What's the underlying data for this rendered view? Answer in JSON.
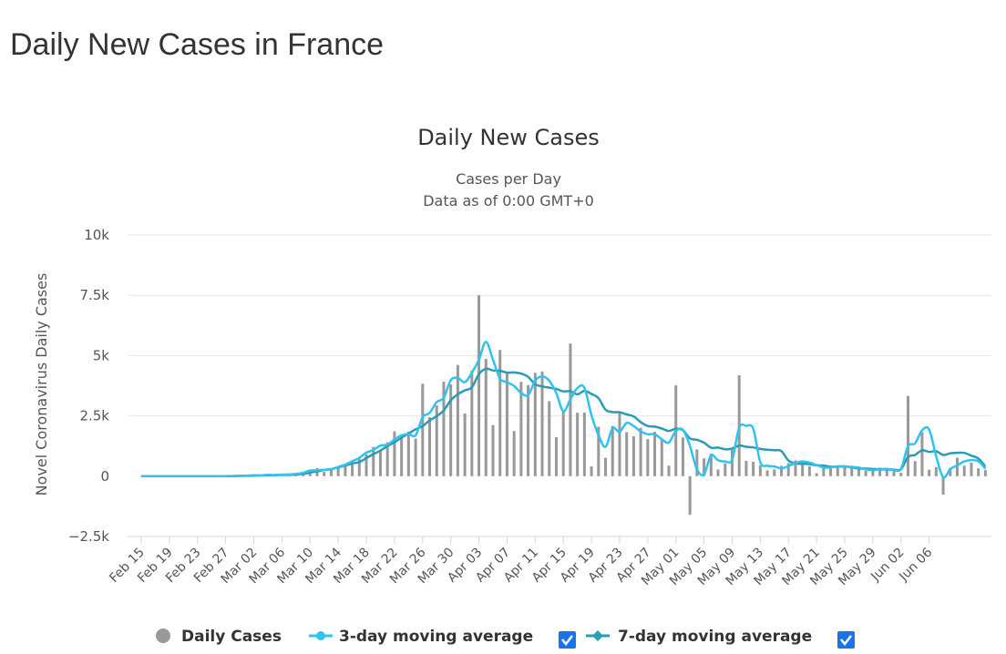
{
  "page": {
    "title": "Daily New Cases in France"
  },
  "chart_data": {
    "type": "bar",
    "title": "Daily New Cases",
    "subtitle_lines": [
      "Cases per Day",
      "Data as of 0:00 GMT+0"
    ],
    "ylabel": "Novel Coronavirus Daily Cases",
    "xlabel": "",
    "ylim": [
      -2500,
      10000
    ],
    "yticks": [
      -2500,
      0,
      2500,
      5000,
      7500,
      10000
    ],
    "ytick_labels": [
      "−2.5k",
      "0",
      "2.5k",
      "5k",
      "7.5k",
      "10k"
    ],
    "grid": true,
    "legend_position": "bottom",
    "x_tick_labels": [
      "Feb 15",
      "Feb 19",
      "Feb 23",
      "Feb 27",
      "Mar 02",
      "Mar 06",
      "Mar 10",
      "Mar 14",
      "Mar 18",
      "Mar 22",
      "Mar 26",
      "Mar 30",
      "Apr 03",
      "Apr 07",
      "Apr 11",
      "Apr 15",
      "Apr 19",
      "Apr 23",
      "Apr 27",
      "May 01",
      "May 05",
      "May 09",
      "May 13",
      "May 17",
      "May 21",
      "May 25",
      "May 29",
      "Jun 02",
      "Jun 06"
    ],
    "start_label": "Feb 15",
    "series": [
      {
        "name": "Daily Cases",
        "kind": "bar",
        "color": "#999999",
        "values": [
          0,
          0,
          0,
          0,
          0,
          0,
          0,
          0,
          0,
          0,
          0,
          0,
          0,
          0,
          2,
          4,
          20,
          19,
          43,
          30,
          61,
          21,
          73,
          138,
          190,
          336,
          177,
          286,
          372,
          495,
          591,
          780,
          905,
          1210,
          1097,
          1404,
          1861,
          1617,
          1847,
          1559,
          3838,
          2446,
          2931,
          3922,
          3809,
          4611,
          2599,
          4376,
          7500,
          4861,
          2116,
          5233,
          4267,
          1873,
          3912,
          3777,
          4286,
          4342,
          3114,
          1613,
          2673,
          5497,
          2633,
          2641,
          406,
          2052,
          759,
          2084,
          2680,
          1827,
          1653,
          2004,
          1537,
          1843,
          1500,
          437,
          3764,
          1607,
          -1600,
          1110,
          737,
          935,
          281,
          533,
          1097,
          4183,
          639,
          596,
          453,
          242,
          278,
          430,
          541,
          656,
          548,
          405,
          122,
          484,
          373,
          358,
          356,
          441,
          312,
          223,
          248,
          358,
          265,
          304,
          145,
          3325,
          625,
          1828,
          271,
          375,
          -767,
          351,
          767,
          437,
          564,
          326,
          255
        ]
      },
      {
        "name": "3-day moving average",
        "kind": "line",
        "color": "#2ec3f0",
        "values": [
          0,
          0,
          0,
          0,
          0,
          0,
          0,
          0,
          1,
          1,
          1,
          2,
          7,
          11,
          23,
          23,
          42,
          32,
          55,
          50,
          63,
          72,
          95,
          139,
          236,
          240,
          268,
          285,
          387,
          485,
          621,
          759,
          976,
          1089,
          1270,
          1307,
          1521,
          1696,
          1750,
          1696,
          2449,
          2628,
          3073,
          3253,
          3985,
          4070,
          3900,
          4287,
          4825,
          5575,
          4826,
          4050,
          3894,
          3743,
          3451,
          3367,
          3962,
          4135,
          3957,
          3442,
          2693,
          3187,
          3660,
          3659,
          2527,
          1700,
          1221,
          1988,
          1840,
          2209,
          2080,
          1857,
          1739,
          1741,
          1530,
          1395,
          1881,
          1921,
          1254,
          274,
          78,
          862,
          660,
          611,
          694,
          2014,
          2090,
          1966,
          580,
          432,
          404,
          320,
          424,
          545,
          610,
          565,
          466,
          359,
          360,
          411,
          406,
          376,
          355,
          285,
          250,
          294,
          304,
          261,
          307,
          1248,
          1359,
          1901,
          1937,
          825,
          -40,
          291,
          455,
          611,
          667,
          621,
          310
        ]
      },
      {
        "name": "7-day moving average",
        "kind": "line",
        "color": "#2b9bb6",
        "values": [
          0,
          0,
          0,
          0,
          0,
          0,
          0,
          0,
          0,
          1,
          1,
          1,
          3,
          5,
          10,
          15,
          24,
          31,
          40,
          43,
          52,
          56,
          66,
          93,
          150,
          202,
          255,
          295,
          369,
          440,
          528,
          586,
          749,
          916,
          1060,
          1250,
          1408,
          1599,
          1770,
          1944,
          2079,
          2311,
          2490,
          2726,
          3146,
          3396,
          3558,
          3684,
          4233,
          4452,
          4386,
          4372,
          4295,
          4303,
          4251,
          4119,
          3810,
          3722,
          3669,
          3617,
          3517,
          3525,
          3394,
          3539,
          3409,
          3234,
          2761,
          2658,
          2652,
          2563,
          2478,
          2244,
          2081,
          2053,
          1975,
          1875,
          1972,
          1904,
          1568,
          1509,
          1390,
          1179,
          1185,
          1114,
          1147,
          1270,
          1218,
          1194,
          1131,
          1096,
          1076,
          1043,
          649,
          534,
          512,
          502,
          452,
          443,
          394,
          395,
          397,
          361,
          319,
          316,
          300,
          286,
          281,
          275,
          288,
          797,
          881,
          1075,
          1007,
          1034,
          882,
          949,
          971,
          966,
          849,
          734,
          400
        ]
      }
    ]
  },
  "legend": {
    "items": [
      {
        "label": "Daily Cases",
        "color": "#999999"
      },
      {
        "label": "3-day moving average",
        "color": "#2ec3f0"
      },
      {
        "label": "7-day moving average",
        "color": "#2b9bb6"
      }
    ]
  }
}
